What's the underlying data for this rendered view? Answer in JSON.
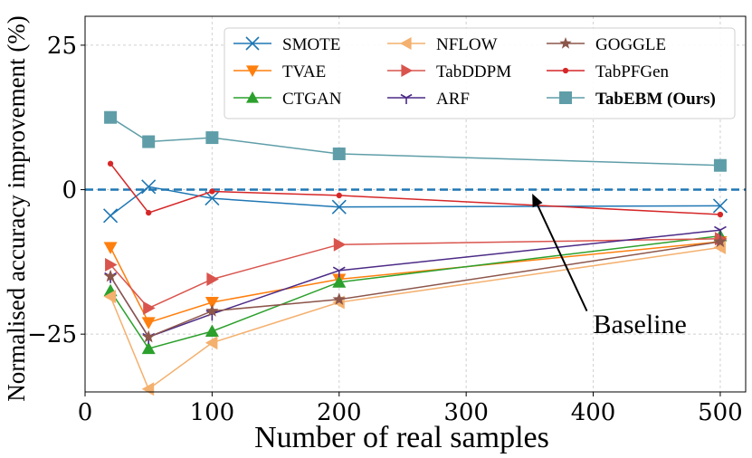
{
  "chart_data": {
    "type": "line",
    "title": "",
    "xlabel": "Number of real samples",
    "ylabel": "Normalised accuracy improvement (%)",
    "xlim": [
      0,
      520
    ],
    "ylim": [
      -35,
      30
    ],
    "xticks": [
      0,
      100,
      200,
      300,
      400,
      500
    ],
    "yticks": [
      25,
      0,
      -25
    ],
    "ytick_labels": [
      "25",
      "0",
      "−25"
    ],
    "grid": true,
    "legend_position": "top-right",
    "x": [
      20,
      50,
      100,
      200,
      500
    ],
    "baseline": {
      "value": 0,
      "label": "Baseline",
      "color": "#1f77b4"
    },
    "series": [
      {
        "name": "SMOTE",
        "color": "#1f77b4",
        "marker": "x",
        "values": [
          -4.5,
          0.5,
          -1.5,
          -3.0,
          -2.8
        ]
      },
      {
        "name": "TVAE",
        "color": "#ff7f0e",
        "marker": "triangle-down",
        "values": [
          -10.0,
          -23.0,
          -19.5,
          -15.5,
          -9.0
        ]
      },
      {
        "name": "CTGAN",
        "color": "#2ca02c",
        "marker": "triangle-up",
        "values": [
          -17.5,
          -27.5,
          -24.5,
          -16.0,
          -8.0
        ]
      },
      {
        "name": "NFLOW",
        "color": "#f4b06e",
        "marker": "triangle-left",
        "values": [
          -18.5,
          -34.5,
          -26.5,
          -19.5,
          -10.0
        ]
      },
      {
        "name": "TabDDPM",
        "color": "#d9544d",
        "marker": "triangle-right",
        "values": [
          -13.0,
          -20.5,
          -15.5,
          -9.5,
          -8.5
        ]
      },
      {
        "name": "ARF",
        "color": "#4b2a86",
        "marker": "tri-down",
        "values": [
          -15.0,
          -25.5,
          -21.5,
          -14.0,
          -7.0
        ]
      },
      {
        "name": "GOGGLE",
        "color": "#8c564b",
        "marker": "star",
        "values": [
          -15.0,
          -25.5,
          -21.0,
          -19.0,
          -9.0
        ]
      },
      {
        "name": "TabPFGen",
        "color": "#d62728",
        "marker": "dot",
        "values": [
          4.5,
          -4.0,
          -0.3,
          -1.0,
          -4.3
        ]
      },
      {
        "name": "TabEBM (Ours)",
        "color": "#5f9ea8",
        "marker": "square",
        "values": [
          12.5,
          8.3,
          9.0,
          6.2,
          4.2
        ]
      }
    ]
  }
}
